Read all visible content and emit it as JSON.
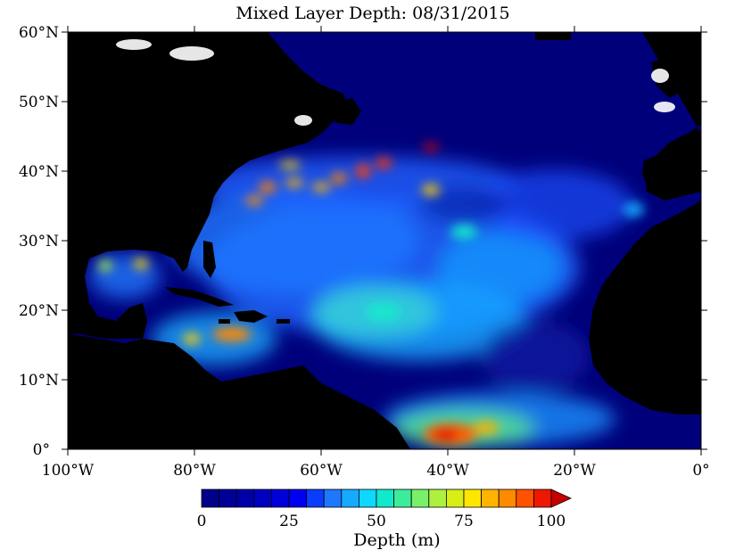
{
  "title": "Mixed Layer Depth: 08/31/2015",
  "lat_labels": [
    "60°N",
    "50°N",
    "40°N",
    "30°N",
    "20°N",
    "10°N",
    "0°"
  ],
  "lon_labels": [
    "100°W",
    "80°W",
    "60°W",
    "40°W",
    "20°W",
    "0°"
  ],
  "colorbar": {
    "ticks": [
      "0",
      "25",
      "50",
      "75",
      "100"
    ],
    "label": "Depth (m)",
    "range": [
      0,
      100
    ],
    "colors": [
      "#00008b",
      "#000096",
      "#0000a8",
      "#0000bf",
      "#0000d8",
      "#0000f0",
      "#0a3cff",
      "#1e78ff",
      "#16aaff",
      "#0ed8ff",
      "#12e8cc",
      "#3cec9a",
      "#7af06a",
      "#aef040",
      "#d8ee14",
      "#ffe600",
      "#ffb400",
      "#ff8a00",
      "#ff5200",
      "#ee1800",
      "#c80000"
    ]
  },
  "colors": {
    "land": "#000000",
    "low_depth": "#00007a",
    "background": "#ffffff"
  }
}
